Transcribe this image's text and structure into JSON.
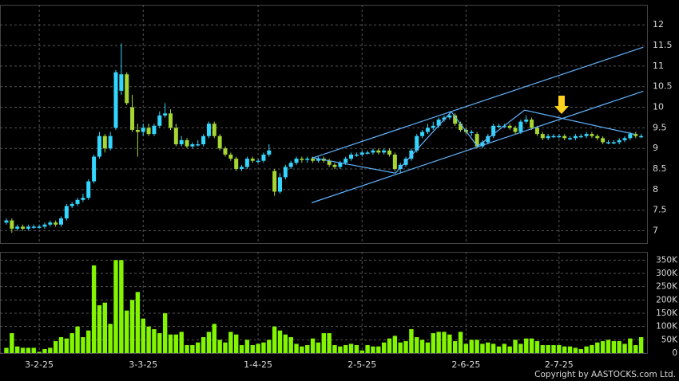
{
  "chart_data": {
    "type": "candlestick",
    "categories": [
      null,
      null,
      null,
      null,
      null,
      null,
      "3-2-25",
      null,
      null,
      null,
      null,
      null,
      null,
      null,
      null,
      null,
      null,
      null,
      null,
      null,
      null,
      null,
      null,
      null,
      null,
      "3-3-25",
      null,
      null,
      null,
      null,
      null,
      null,
      null,
      null,
      null,
      null,
      null,
      null,
      null,
      null,
      null,
      null,
      null,
      null,
      null,
      null,
      "1-4-25",
      null,
      null,
      null,
      null,
      null,
      null,
      null,
      null,
      null,
      null,
      null,
      null,
      null,
      null,
      null,
      null,
      null,
      null,
      "2-5-25",
      null,
      null,
      null,
      null,
      null,
      null,
      null,
      null,
      null,
      null,
      null,
      null,
      null,
      null,
      null,
      null,
      null,
      null,
      "2-6-25",
      null,
      null,
      null,
      null,
      null,
      null,
      null,
      null,
      null,
      null,
      null,
      null,
      null,
      null,
      null,
      null,
      "2-7-25",
      null,
      null,
      null,
      null,
      null,
      null,
      null,
      null,
      null,
      null,
      null,
      null,
      null,
      null,
      null
    ],
    "open": [
      7.2,
      7.25,
      7.05,
      7.1,
      7.05,
      7.1,
      7.1,
      7.1,
      7.15,
      7.2,
      7.15,
      7.3,
      7.6,
      7.65,
      7.75,
      7.8,
      8.2,
      8.8,
      9.3,
      9.0,
      9.5,
      10.4,
      10.8,
      10.0,
      9.45,
      9.4,
      9.5,
      9.35,
      9.55,
      9.8,
      9.85,
      9.5,
      9.1,
      9.2,
      9.05,
      9.1,
      9.1,
      9.3,
      9.6,
      9.3,
      9.0,
      8.85,
      8.75,
      8.5,
      8.55,
      8.75,
      8.7,
      8.7,
      8.85,
      8.45,
      7.95,
      8.3,
      8.55,
      8.65,
      8.75,
      8.72,
      8.75,
      8.7,
      8.75,
      8.7,
      8.6,
      8.55,
      8.65,
      8.75,
      8.85,
      8.85,
      8.9,
      8.9,
      8.95,
      8.9,
      8.95,
      8.85,
      8.5,
      8.6,
      8.75,
      8.95,
      9.3,
      9.4,
      9.5,
      9.55,
      9.7,
      9.75,
      9.8,
      9.6,
      9.45,
      9.4,
      9.35,
      9.05,
      9.15,
      9.3,
      9.55,
      9.55,
      9.55,
      9.5,
      9.4,
      9.65,
      9.7,
      9.5,
      9.35,
      9.25,
      9.3,
      9.3,
      9.3,
      9.25,
      9.25,
      9.3,
      9.3,
      9.35,
      9.3,
      9.25,
      9.15,
      9.15,
      9.15,
      9.2,
      9.25,
      9.35,
      9.3
    ],
    "high": [
      7.3,
      7.3,
      7.15,
      7.15,
      7.15,
      7.15,
      7.15,
      7.2,
      7.25,
      7.25,
      7.35,
      7.65,
      7.7,
      7.8,
      7.9,
      8.25,
      8.85,
      9.4,
      9.35,
      9.4,
      10.9,
      11.55,
      10.85,
      10.3,
      9.6,
      9.6,
      9.6,
      9.6,
      9.9,
      10.1,
      9.95,
      9.6,
      9.3,
      9.25,
      9.15,
      9.2,
      9.35,
      9.65,
      9.65,
      9.35,
      9.05,
      8.9,
      8.8,
      8.6,
      8.8,
      8.8,
      8.75,
      8.9,
      9.1,
      8.5,
      8.4,
      8.6,
      8.7,
      8.8,
      8.8,
      8.8,
      8.8,
      8.8,
      8.8,
      8.75,
      8.65,
      8.7,
      8.8,
      8.9,
      8.9,
      8.95,
      8.95,
      9.0,
      9.0,
      9.0,
      9.0,
      8.9,
      8.65,
      8.8,
      9.0,
      9.35,
      9.45,
      9.6,
      9.65,
      9.75,
      9.8,
      9.9,
      9.85,
      9.65,
      9.5,
      9.45,
      9.4,
      9.2,
      9.35,
      9.6,
      9.6,
      9.6,
      9.6,
      9.55,
      9.7,
      9.8,
      9.75,
      9.55,
      9.4,
      9.35,
      9.35,
      9.35,
      9.35,
      9.3,
      9.35,
      9.35,
      9.4,
      9.4,
      9.35,
      9.3,
      9.2,
      9.2,
      9.25,
      9.3,
      9.4,
      9.4,
      9.35
    ],
    "low": [
      7.15,
      6.95,
      7.0,
      7.0,
      7.0,
      7.05,
      7.05,
      7.05,
      7.1,
      7.1,
      7.1,
      7.25,
      7.55,
      7.6,
      7.7,
      7.75,
      8.15,
      8.75,
      8.9,
      8.95,
      9.45,
      10.3,
      10.05,
      9.4,
      8.8,
      9.3,
      9.3,
      9.3,
      9.5,
      9.75,
      9.45,
      9.05,
      9.05,
      9.0,
      9.0,
      9.05,
      9.05,
      9.25,
      9.25,
      8.95,
      8.8,
      8.7,
      8.45,
      8.45,
      8.5,
      8.65,
      8.65,
      8.65,
      8.8,
      7.85,
      7.9,
      8.25,
      8.5,
      8.6,
      8.65,
      8.65,
      8.65,
      8.65,
      8.65,
      8.55,
      8.5,
      8.5,
      8.6,
      8.7,
      8.8,
      8.8,
      8.85,
      8.85,
      8.85,
      8.85,
      8.8,
      8.45,
      8.4,
      8.55,
      8.7,
      8.9,
      9.25,
      9.35,
      9.45,
      9.5,
      9.65,
      9.7,
      9.55,
      9.4,
      9.35,
      9.3,
      9.0,
      9.0,
      9.1,
      9.25,
      9.5,
      9.5,
      9.45,
      9.35,
      9.35,
      9.6,
      9.45,
      9.3,
      9.2,
      9.2,
      9.25,
      9.25,
      9.2,
      9.2,
      9.2,
      9.25,
      9.25,
      9.25,
      9.2,
      9.1,
      9.1,
      9.1,
      9.1,
      9.15,
      9.2,
      9.25,
      9.25
    ],
    "close": [
      7.25,
      7.05,
      7.1,
      7.05,
      7.1,
      7.1,
      7.1,
      7.15,
      7.2,
      7.15,
      7.3,
      7.6,
      7.65,
      7.75,
      7.8,
      8.2,
      8.8,
      9.3,
      9.0,
      9.3,
      10.85,
      10.8,
      10.1,
      9.45,
      9.4,
      9.5,
      9.35,
      9.55,
      9.8,
      9.85,
      9.5,
      9.1,
      9.2,
      9.05,
      9.1,
      9.1,
      9.3,
      9.6,
      9.3,
      9.0,
      8.85,
      8.75,
      8.5,
      8.55,
      8.75,
      8.7,
      8.7,
      8.85,
      8.95,
      7.95,
      8.3,
      8.55,
      8.65,
      8.75,
      8.72,
      8.75,
      8.7,
      8.75,
      8.7,
      8.6,
      8.55,
      8.65,
      8.75,
      8.85,
      8.85,
      8.9,
      8.9,
      8.95,
      8.9,
      8.95,
      8.85,
      8.5,
      8.6,
      8.75,
      8.95,
      9.3,
      9.4,
      9.5,
      9.55,
      9.7,
      9.75,
      9.8,
      9.6,
      9.45,
      9.4,
      9.4,
      9.05,
      9.15,
      9.3,
      9.55,
      9.55,
      9.55,
      9.5,
      9.4,
      9.65,
      9.7,
      9.5,
      9.35,
      9.25,
      9.3,
      9.3,
      9.3,
      9.25,
      9.25,
      9.3,
      9.3,
      9.35,
      9.3,
      9.25,
      9.15,
      9.15,
      9.15,
      9.2,
      9.25,
      9.35,
      9.3,
      9.3
    ],
    "up_color": "#33d6ff",
    "down_color": "#a6d632",
    "ylim": [
      6.7,
      12.45
    ],
    "yticks": [
      7,
      7.5,
      8,
      8.5,
      9,
      9.5,
      10,
      10.5,
      11,
      11.5,
      12
    ],
    "grid": true,
    "trend_lines": [
      {
        "x": [
          55.8,
          116.4
        ],
        "y": [
          8.76,
          11.46
        ]
      },
      {
        "x": [
          55.8,
          116.4
        ],
        "y": [
          7.68,
          10.39
        ]
      },
      {
        "x": [
          55.8,
          71.1,
          81.3,
          86.1,
          94.7,
          114.9
        ],
        "y": [
          8.78,
          8.4,
          9.89,
          9.05,
          9.93,
          9.34
        ]
      }
    ],
    "trend_color": "#5fb4ff",
    "volume": {
      "type": "bar",
      "color": "#84f500",
      "values": [
        20000,
        75000,
        25000,
        20000,
        20000,
        20000,
        5000,
        15000,
        20000,
        45000,
        60000,
        55000,
        75000,
        100000,
        60000,
        85000,
        330000,
        180000,
        190000,
        110000,
        350000,
        350000,
        160000,
        200000,
        230000,
        130000,
        100000,
        90000,
        75000,
        150000,
        70000,
        70000,
        80000,
        30000,
        30000,
        40000,
        60000,
        80000,
        110000,
        50000,
        40000,
        80000,
        70000,
        30000,
        50000,
        30000,
        35000,
        40000,
        50000,
        100000,
        85000,
        70000,
        60000,
        35000,
        25000,
        30000,
        55000,
        40000,
        75000,
        75000,
        30000,
        25000,
        30000,
        35000,
        30000,
        10000,
        30000,
        25000,
        25000,
        40000,
        55000,
        65000,
        40000,
        45000,
        90000,
        60000,
        50000,
        40000,
        75000,
        80000,
        80000,
        70000,
        45000,
        80000,
        35000,
        50000,
        50000,
        35000,
        40000,
        35000,
        25000,
        35000,
        25000,
        50000,
        35000,
        55000,
        55000,
        45000,
        30000,
        30000,
        30000,
        30000,
        25000,
        25000,
        20000,
        15000,
        25000,
        30000,
        40000,
        45000,
        50000,
        45000,
        45000,
        35000,
        55000,
        30000,
        60000
      ],
      "ylim": [
        0,
        375000
      ],
      "yticks": [
        0,
        {
          "value": 50000,
          "label": "50K"
        },
        {
          "value": 100000,
          "label": "100K"
        },
        {
          "value": 150000,
          "label": "150K"
        },
        {
          "value": 200000,
          "label": "200K"
        },
        {
          "value": 250000,
          "label": "250K"
        },
        {
          "value": 300000,
          "label": "300K"
        },
        {
          "value": 350000,
          "label": "350K"
        }
      ]
    }
  },
  "footer": {
    "copyright": "Copyright by AASTOCKS.com Ltd."
  }
}
